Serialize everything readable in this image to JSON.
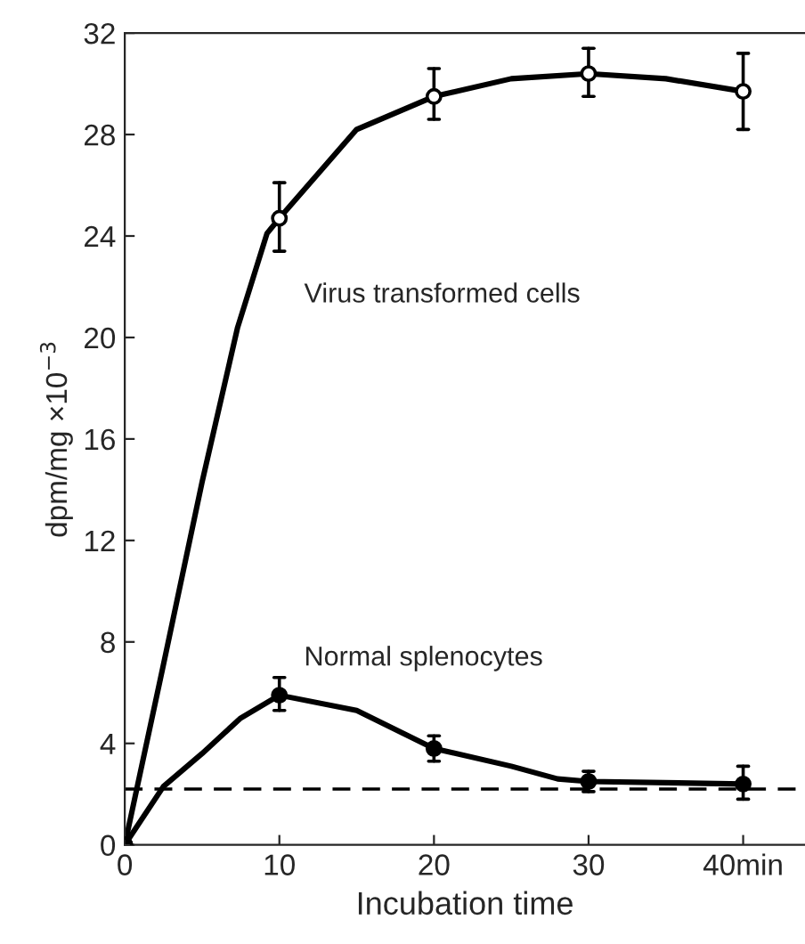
{
  "chart_data": {
    "type": "line",
    "xlabel": "Incubation time",
    "ylabel": "dpm/mg ×10$^{−3}$",
    "x": [
      0,
      10,
      20,
      30,
      40
    ],
    "series": [
      {
        "name": "Virus transformed cells",
        "type": "scatter",
        "marker": "circle",
        "color": "#ffffff",
        "values": [
          0,
          24.7,
          29.5,
          30.4,
          29.7
        ],
        "errors": [
          null,
          [
            23.4,
            26.1
          ],
          [
            28.6,
            30.6
          ],
          [
            29.5,
            31.4
          ],
          [
            28.2,
            31.2
          ]
        ]
      },
      {
        "name": "Normal splenocytes",
        "type": "scatter",
        "marker": "circle",
        "color": "#000000",
        "values": [
          0,
          5.9,
          3.8,
          2.5,
          2.4
        ],
        "errors": [
          null,
          [
            5.3,
            6.6
          ],
          [
            3.3,
            4.3
          ],
          [
            2.1,
            2.9
          ],
          [
            1.8,
            3.1
          ]
        ]
      },
      {
        "color": "#000000",
        "x": [
          0,
          2.5,
          5,
          7.3,
          9.2,
          10,
          15,
          20,
          25,
          30,
          35,
          40
        ],
        "values": [
          0,
          7.1,
          14.3,
          20.4,
          24.1,
          24.7,
          28.2,
          29.5,
          30.2,
          30.4,
          30.2,
          29.7
        ]
      },
      {
        "color": "#000000",
        "x": [
          0,
          2.5,
          5,
          7.5,
          10,
          15,
          20,
          25,
          28,
          30,
          40
        ],
        "values": [
          0,
          2.3,
          3.6,
          5.0,
          5.9,
          5.3,
          3.8,
          3.1,
          2.6,
          2.5,
          2.4
        ]
      }
    ],
    "ref_lines": [
      {
        "axis": "y",
        "value": 2.2,
        "color": "#000000",
        "line_style": "dashed"
      }
    ],
    "xlim": [
      0,
      44
    ],
    "xticks": [
      0,
      10,
      20,
      30,
      {
        "value": 40,
        "label": "40min"
      }
    ],
    "ylim": [
      0,
      32
    ],
    "yticks": [
      0,
      4,
      8,
      12,
      16,
      20,
      24,
      28,
      32
    ],
    "grid": false,
    "legend": false,
    "line_style": "solid"
  }
}
